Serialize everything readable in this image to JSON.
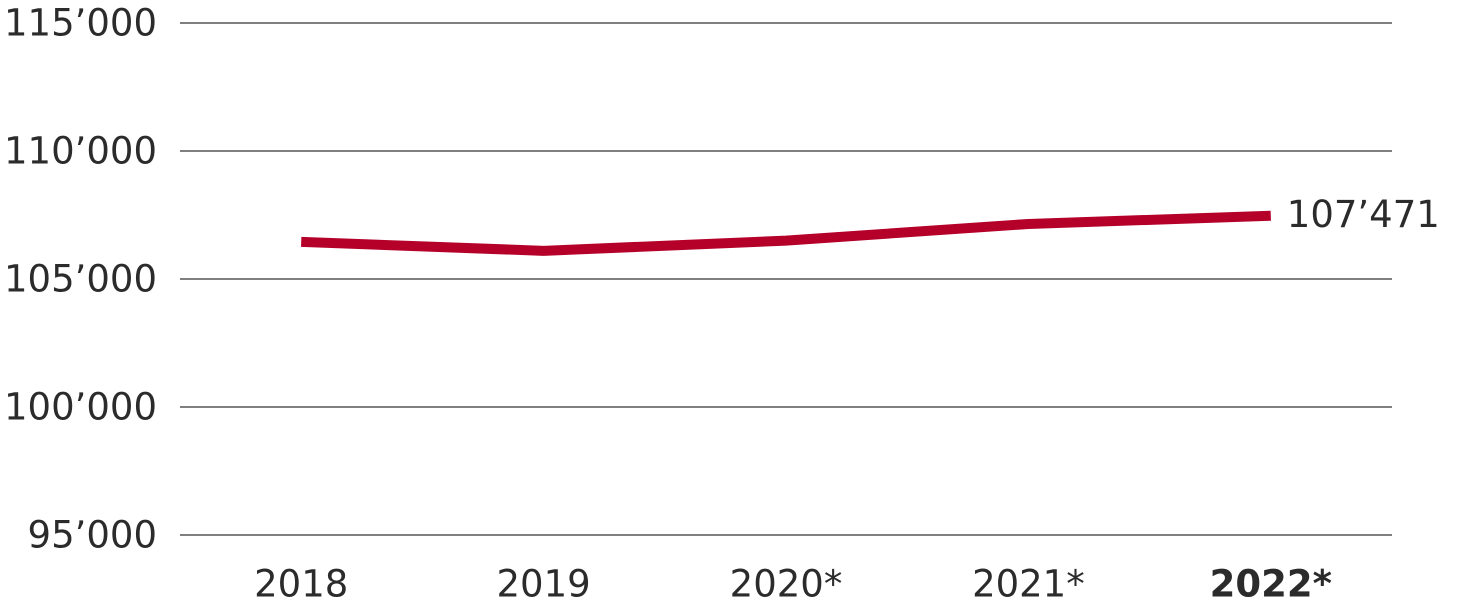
{
  "chart_data": {
    "type": "line",
    "categories": [
      "2018",
      "2019",
      "2020*",
      "2021*",
      "2022*"
    ],
    "series": [
      {
        "color": "#b5002a",
        "values": [
          106450,
          106100,
          106500,
          107150,
          107471
        ],
        "value_labels": [
          null,
          null,
          null,
          null,
          "107’471"
        ]
      }
    ],
    "ylim": [
      95000,
      115000
    ],
    "yticks": [
      {
        "value": 95000,
        "label": "95’000"
      },
      {
        "value": 100000,
        "label": "100’000"
      },
      {
        "value": 105000,
        "label": "105’000"
      },
      {
        "value": 110000,
        "label": "110’000"
      },
      {
        "value": 115000,
        "label": "115’000"
      }
    ],
    "grid": true
  }
}
